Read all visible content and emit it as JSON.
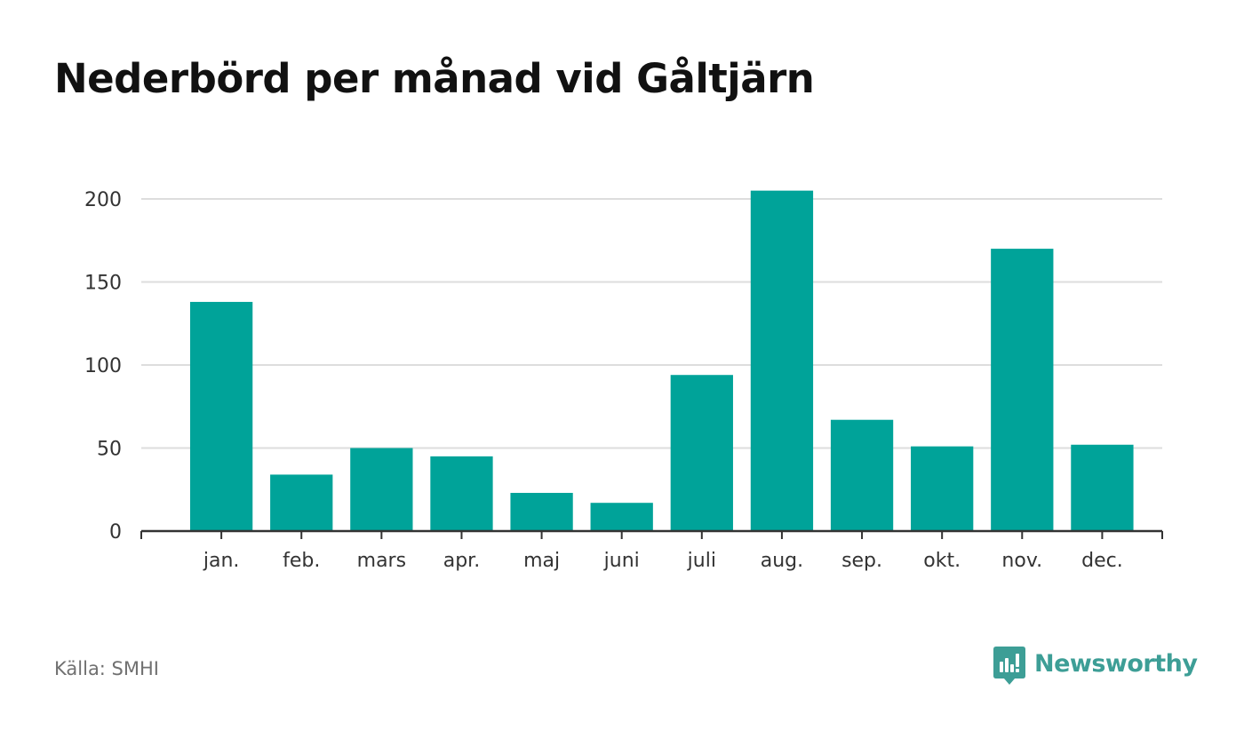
{
  "title": "Nederbörd per månad vid Gåltjärn",
  "source": "Källa: SMHI",
  "brand": {
    "name": "Newsworthy",
    "icon": "newsworthy-chart-bubble-icon",
    "color": "#3d9e96"
  },
  "colors": {
    "bar": "#00a399",
    "grid": "#dddddd",
    "axis": "#333333",
    "text": "#333333"
  },
  "chart_data": {
    "type": "bar",
    "title": "Nederbörd per månad vid Gåltjärn",
    "categories": [
      "jan.",
      "feb.",
      "mars",
      "apr.",
      "maj",
      "juni",
      "juli",
      "aug.",
      "sep.",
      "okt.",
      "nov.",
      "dec."
    ],
    "values": [
      138,
      34,
      50,
      45,
      23,
      17,
      94,
      205,
      67,
      51,
      170,
      52
    ],
    "xlabel": "",
    "ylabel": "",
    "ylim": [
      0,
      200
    ],
    "yticks": [
      0,
      50,
      100,
      150,
      200
    ],
    "grid": true,
    "legend": "none"
  }
}
